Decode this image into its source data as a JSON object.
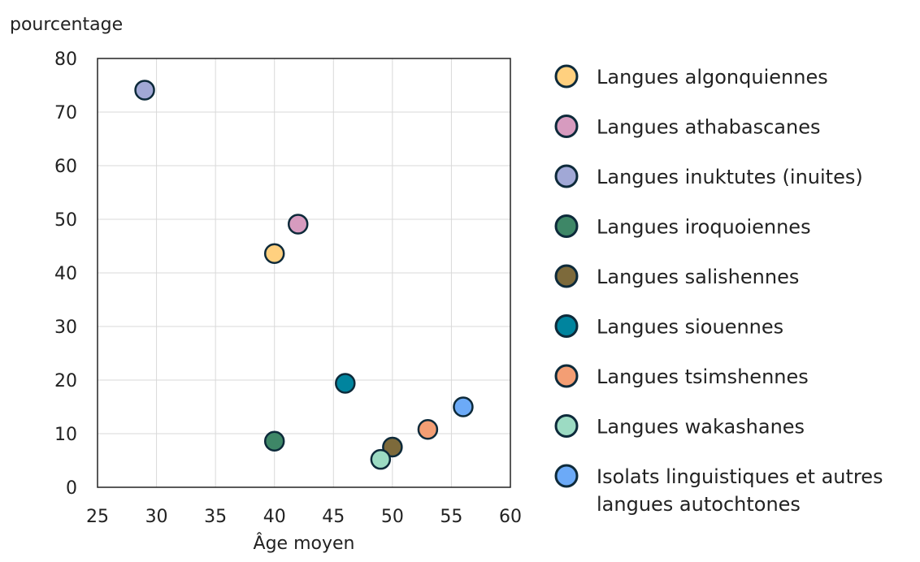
{
  "chart_data": {
    "type": "scatter",
    "title": "",
    "xlabel": "Âge moyen",
    "ylabel": "pourcentage",
    "xlim": [
      25,
      60
    ],
    "ylim": [
      0,
      80
    ],
    "xticks": [
      25,
      30,
      35,
      40,
      45,
      50,
      55,
      60
    ],
    "yticks": [
      0,
      10,
      20,
      30,
      40,
      50,
      60,
      70,
      80
    ],
    "grid": true,
    "legend_position": "right",
    "series": [
      {
        "name": "Langues algonquiennes",
        "color": "#FFD07F",
        "x": 40,
        "y": 43.6
      },
      {
        "name": "Langues athabascanes",
        "color": "#D79BBF",
        "x": 42,
        "y": 49.1
      },
      {
        "name": "Langues inuktutes (inuites)",
        "color": "#A1A8D6",
        "x": 29,
        "y": 74.1
      },
      {
        "name": "Langues iroquoiennes",
        "color": "#3E8767",
        "x": 40,
        "y": 8.6
      },
      {
        "name": "Langues salishennes",
        "color": "#7D6A3B",
        "x": 50,
        "y": 7.5
      },
      {
        "name": "Langues siouennes",
        "color": "#00849E",
        "x": 46,
        "y": 19.4
      },
      {
        "name": "Langues tsimshennes",
        "color": "#F39E74",
        "x": 53,
        "y": 10.8
      },
      {
        "name": "Langues wakashanes",
        "color": "#9CDBC3",
        "x": 49,
        "y": 5.2
      },
      {
        "name": "Isolats linguistiques et autres\nlangues autochtones",
        "color": "#6CAAF7",
        "x": 56,
        "y": 15
      }
    ]
  }
}
